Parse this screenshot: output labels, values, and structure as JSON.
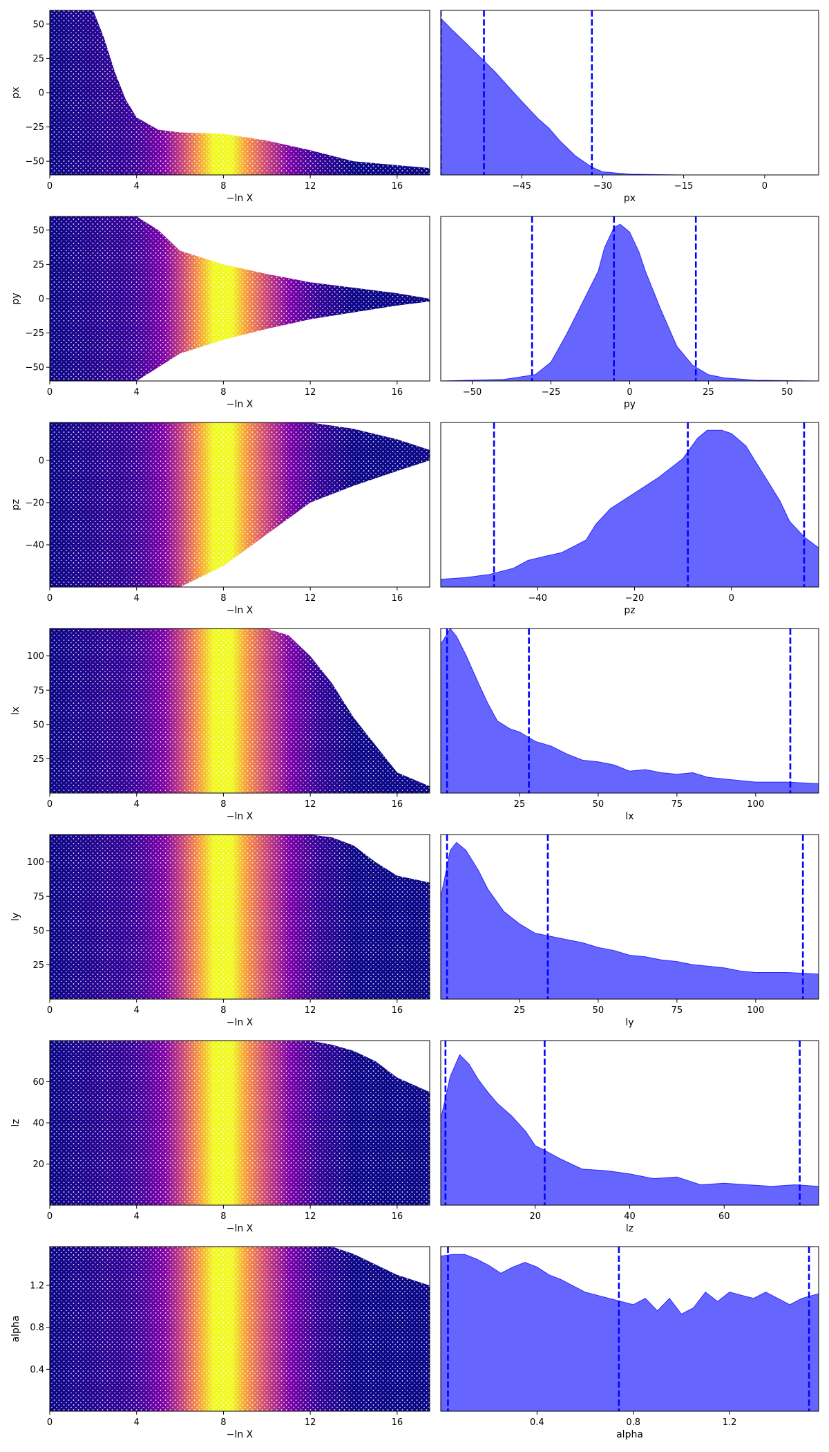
{
  "figure": {
    "xlabel_left": "−ln X"
  },
  "chart_data": [
    {
      "type": "scatter",
      "param": "px",
      "ylabel": "px",
      "xlim": [
        0,
        17.5
      ],
      "ylim": [
        -60,
        60
      ],
      "xticks": [
        {
          "v": 0,
          "t": "0"
        },
        {
          "v": 4,
          "t": "4"
        },
        {
          "v": 8,
          "t": "8"
        },
        {
          "v": 12,
          "t": "12"
        },
        {
          "v": 16,
          "t": "16"
        }
      ],
      "yticks": [
        {
          "v": -50,
          "t": "−50"
        },
        {
          "v": -25,
          "t": "−25"
        },
        {
          "v": 0,
          "t": "0"
        },
        {
          "v": 25,
          "t": "25"
        },
        {
          "v": 50,
          "t": "50"
        }
      ],
      "envelope": {
        "x": [
          0,
          1,
          2,
          2.5,
          3,
          3.5,
          4,
          5,
          6,
          8,
          10,
          12,
          14,
          17.5
        ],
        "upper": [
          60,
          60,
          60,
          40,
          15,
          -5,
          -18,
          -27,
          -29,
          -30,
          -35,
          -42,
          -50,
          -55
        ]
      },
      "color_peak": 7.6
    },
    {
      "type": "kde",
      "param": "px",
      "xlabel": "px",
      "xlim": [
        -60,
        10
      ],
      "ylim": [
        0,
        1.05
      ],
      "xticks": [
        {
          "v": -45,
          "t": "−45"
        },
        {
          "v": -30,
          "t": "−30"
        },
        {
          "v": -15,
          "t": "−15"
        },
        {
          "v": 0,
          "t": "0"
        }
      ],
      "x": [
        -60,
        -58,
        -55,
        -50,
        -45,
        -42,
        -40,
        -38,
        -35,
        -32,
        -30,
        -25,
        -20,
        -15,
        -10,
        10
      ],
      "density": [
        1.0,
        0.93,
        0.83,
        0.66,
        0.47,
        0.36,
        0.3,
        0.22,
        0.12,
        0.05,
        0.02,
        0.005,
        0.002,
        0.0,
        0.0,
        0.0
      ],
      "quantiles": [
        -60,
        -52,
        -32
      ]
    },
    {
      "type": "scatter",
      "param": "py",
      "ylabel": "py",
      "xlim": [
        0,
        17.5
      ],
      "ylim": [
        -60,
        60
      ],
      "xticks": [
        {
          "v": 0,
          "t": "0"
        },
        {
          "v": 4,
          "t": "4"
        },
        {
          "v": 8,
          "t": "8"
        },
        {
          "v": 12,
          "t": "12"
        },
        {
          "v": 16,
          "t": "16"
        }
      ],
      "yticks": [
        {
          "v": -50,
          "t": "−50"
        },
        {
          "v": -25,
          "t": "−25"
        },
        {
          "v": 0,
          "t": "0"
        },
        {
          "v": 25,
          "t": "25"
        },
        {
          "v": 50,
          "t": "50"
        }
      ],
      "envelope": {
        "x": [
          0,
          4,
          5,
          6,
          8,
          10,
          12,
          14,
          16,
          17.5
        ],
        "upper": [
          60,
          60,
          50,
          35,
          25,
          18,
          12,
          8,
          4,
          0
        ],
        "lower": [
          -60,
          -60,
          -50,
          -40,
          -30,
          -22,
          -15,
          -10,
          -5,
          -2
        ]
      },
      "color_peak": 7.6
    },
    {
      "type": "kde",
      "param": "py",
      "xlabel": "py",
      "xlim": [
        -60,
        60
      ],
      "ylim": [
        0,
        1.05
      ],
      "xticks": [
        {
          "v": -50,
          "t": "−50"
        },
        {
          "v": -25,
          "t": "−25"
        },
        {
          "v": 0,
          "t": "0"
        },
        {
          "v": 25,
          "t": "25"
        },
        {
          "v": 50,
          "t": "50"
        }
      ],
      "x": [
        -60,
        -40,
        -30,
        -25,
        -20,
        -15,
        -10,
        -8,
        -5,
        -3,
        0,
        3,
        5,
        10,
        15,
        20,
        25,
        30,
        40,
        60
      ],
      "density": [
        0.0,
        0.01,
        0.04,
        0.12,
        0.3,
        0.5,
        0.7,
        0.85,
        0.98,
        1.0,
        0.95,
        0.82,
        0.7,
        0.45,
        0.22,
        0.1,
        0.04,
        0.02,
        0.005,
        0.0
      ],
      "quantiles": [
        -31,
        -5,
        21
      ]
    },
    {
      "type": "scatter",
      "param": "pz",
      "ylabel": "pz",
      "xlim": [
        0,
        17.5
      ],
      "ylim": [
        -60,
        18
      ],
      "xticks": [
        {
          "v": 0,
          "t": "0"
        },
        {
          "v": 4,
          "t": "4"
        },
        {
          "v": 8,
          "t": "8"
        },
        {
          "v": 12,
          "t": "12"
        },
        {
          "v": 16,
          "t": "16"
        }
      ],
      "yticks": [
        {
          "v": -40,
          "t": "−40"
        },
        {
          "v": -20,
          "t": "−20"
        },
        {
          "v": 0,
          "t": "0"
        }
      ],
      "envelope": {
        "x": [
          0,
          6,
          8,
          10,
          12,
          14,
          16,
          17.5
        ],
        "upper": [
          18,
          18,
          18,
          18,
          18,
          15,
          10,
          5
        ],
        "lower": [
          -60,
          -60,
          -50,
          -35,
          -20,
          -12,
          -5,
          0
        ]
      },
      "color_peak": 7.6
    },
    {
      "type": "kde",
      "param": "pz",
      "xlabel": "pz",
      "xlim": [
        -60,
        18
      ],
      "ylim": [
        0,
        1.05
      ],
      "xticks": [
        {
          "v": -40,
          "t": "−40"
        },
        {
          "v": -20,
          "t": "−20"
        },
        {
          "v": 0,
          "t": "0"
        }
      ],
      "x": [
        -60,
        -55,
        -50,
        -45,
        -42,
        -38,
        -35,
        -30,
        -28,
        -25,
        -20,
        -15,
        -10,
        -7,
        -5,
        -2,
        0,
        3,
        5,
        8,
        10,
        12,
        15,
        18
      ],
      "density": [
        0.05,
        0.06,
        0.08,
        0.12,
        0.17,
        0.2,
        0.22,
        0.3,
        0.4,
        0.5,
        0.6,
        0.7,
        0.82,
        0.95,
        1.0,
        1.0,
        0.98,
        0.9,
        0.8,
        0.65,
        0.55,
        0.42,
        0.32,
        0.25
      ],
      "quantiles": [
        -49,
        -9,
        15
      ]
    },
    {
      "type": "scatter",
      "param": "lx",
      "ylabel": "lx",
      "xlim": [
        0,
        17.5
      ],
      "ylim": [
        0,
        120
      ],
      "xticks": [
        {
          "v": 0,
          "t": "0"
        },
        {
          "v": 4,
          "t": "4"
        },
        {
          "v": 8,
          "t": "8"
        },
        {
          "v": 12,
          "t": "12"
        },
        {
          "v": 16,
          "t": "16"
        }
      ],
      "yticks": [
        {
          "v": 25,
          "t": "25"
        },
        {
          "v": 50,
          "t": "50"
        },
        {
          "v": 75,
          "t": "75"
        },
        {
          "v": 100,
          "t": "100"
        }
      ],
      "envelope": {
        "x": [
          0,
          10,
          11,
          12,
          13,
          14,
          15,
          16,
          17.5
        ],
        "upper": [
          120,
          120,
          115,
          100,
          80,
          55,
          35,
          15,
          5
        ],
        "lower": [
          0,
          0,
          0,
          0,
          0,
          0,
          0,
          0,
          0
        ]
      },
      "color_peak": 7.6
    },
    {
      "type": "kde",
      "param": "lx",
      "xlabel": "lx",
      "xlim": [
        0,
        120
      ],
      "ylim": [
        0,
        1.05
      ],
      "xticks": [
        {
          "v": 25,
          "t": "25"
        },
        {
          "v": 50,
          "t": "50"
        },
        {
          "v": 75,
          "t": "75"
        },
        {
          "v": 100,
          "t": "100"
        }
      ],
      "x": [
        0,
        3,
        5,
        8,
        12,
        15,
        18,
        22,
        25,
        30,
        35,
        40,
        45,
        50,
        55,
        60,
        65,
        70,
        75,
        80,
        85,
        90,
        95,
        100,
        110,
        120
      ],
      "density": [
        0.95,
        1.05,
        1.0,
        0.88,
        0.7,
        0.57,
        0.46,
        0.41,
        0.39,
        0.33,
        0.3,
        0.25,
        0.21,
        0.2,
        0.18,
        0.14,
        0.15,
        0.13,
        0.12,
        0.13,
        0.1,
        0.09,
        0.08,
        0.07,
        0.07,
        0.06
      ],
      "quantiles": [
        2,
        28,
        111
      ]
    },
    {
      "type": "scatter",
      "param": "ly",
      "ylabel": "ly",
      "xlim": [
        0,
        17.5
      ],
      "ylim": [
        0,
        120
      ],
      "xticks": [
        {
          "v": 0,
          "t": "0"
        },
        {
          "v": 4,
          "t": "4"
        },
        {
          "v": 8,
          "t": "8"
        },
        {
          "v": 12,
          "t": "12"
        },
        {
          "v": 16,
          "t": "16"
        }
      ],
      "yticks": [
        {
          "v": 25,
          "t": "25"
        },
        {
          "v": 50,
          "t": "50"
        },
        {
          "v": 75,
          "t": "75"
        },
        {
          "v": 100,
          "t": "100"
        }
      ],
      "envelope": {
        "x": [
          0,
          12,
          13,
          14,
          15,
          16,
          17.5
        ],
        "upper": [
          120,
          120,
          118,
          112,
          100,
          90,
          85
        ],
        "lower": [
          0,
          0,
          0,
          0,
          0,
          0,
          0
        ]
      },
      "color_peak": 7.6
    },
    {
      "type": "kde",
      "param": "ly",
      "xlabel": "ly",
      "xlim": [
        0,
        120
      ],
      "ylim": [
        0,
        1.05
      ],
      "xticks": [
        {
          "v": 25,
          "t": "25"
        },
        {
          "v": 50,
          "t": "50"
        },
        {
          "v": 75,
          "t": "75"
        },
        {
          "v": 100,
          "t": "100"
        }
      ],
      "x": [
        0,
        3,
        5,
        8,
        12,
        15,
        20,
        25,
        30,
        35,
        40,
        45,
        50,
        55,
        60,
        65,
        70,
        75,
        80,
        85,
        90,
        95,
        100,
        110,
        120
      ],
      "density": [
        0.65,
        0.95,
        1.0,
        0.95,
        0.82,
        0.7,
        0.56,
        0.48,
        0.42,
        0.4,
        0.38,
        0.36,
        0.33,
        0.31,
        0.28,
        0.27,
        0.25,
        0.24,
        0.22,
        0.21,
        0.2,
        0.18,
        0.17,
        0.17,
        0.16
      ],
      "quantiles": [
        2,
        34,
        115
      ]
    },
    {
      "type": "scatter",
      "param": "lz",
      "ylabel": "lz",
      "xlim": [
        0,
        17.5
      ],
      "ylim": [
        0,
        80
      ],
      "xticks": [
        {
          "v": 0,
          "t": "0"
        },
        {
          "v": 4,
          "t": "4"
        },
        {
          "v": 8,
          "t": "8"
        },
        {
          "v": 12,
          "t": "12"
        },
        {
          "v": 16,
          "t": "16"
        }
      ],
      "yticks": [
        {
          "v": 20,
          "t": "20"
        },
        {
          "v": 40,
          "t": "40"
        },
        {
          "v": 60,
          "t": "60"
        }
      ],
      "envelope": {
        "x": [
          0,
          12,
          13,
          14,
          15,
          16,
          17.5
        ],
        "upper": [
          80,
          80,
          78,
          75,
          70,
          62,
          55
        ],
        "lower": [
          0,
          0,
          0,
          0,
          0,
          0,
          0
        ]
      },
      "color_peak": 7.6
    },
    {
      "type": "kde",
      "param": "lz",
      "xlabel": "lz",
      "xlim": [
        0,
        80
      ],
      "ylim": [
        0,
        1.05
      ],
      "xticks": [
        {
          "v": 20,
          "t": "20"
        },
        {
          "v": 40,
          "t": "40"
        },
        {
          "v": 60,
          "t": "60"
        }
      ],
      "x": [
        0,
        2,
        4,
        6,
        8,
        10,
        12,
        15,
        18,
        20,
        22,
        25,
        30,
        35,
        40,
        45,
        50,
        55,
        60,
        65,
        70,
        75,
        80
      ],
      "density": [
        0.55,
        0.82,
        0.96,
        0.9,
        0.8,
        0.72,
        0.65,
        0.57,
        0.47,
        0.38,
        0.35,
        0.3,
        0.23,
        0.22,
        0.2,
        0.17,
        0.18,
        0.13,
        0.14,
        0.13,
        0.12,
        0.13,
        0.12
      ],
      "quantiles": [
        1,
        22,
        76
      ]
    },
    {
      "type": "scatter",
      "param": "alpha",
      "ylabel": "alpha",
      "xlim": [
        0,
        17.5
      ],
      "ylim": [
        0,
        1.57
      ],
      "xticks": [
        {
          "v": 0,
          "t": "0"
        },
        {
          "v": 4,
          "t": "4"
        },
        {
          "v": 8,
          "t": "8"
        },
        {
          "v": 12,
          "t": "12"
        },
        {
          "v": 16,
          "t": "16"
        }
      ],
      "yticks": [
        {
          "v": 0.4,
          "t": "0.4"
        },
        {
          "v": 0.8,
          "t": "0.8"
        },
        {
          "v": 1.2,
          "t": "1.2"
        }
      ],
      "envelope": {
        "x": [
          0,
          13,
          14,
          15,
          16,
          17.5
        ],
        "upper": [
          1.57,
          1.57,
          1.5,
          1.4,
          1.3,
          1.2
        ],
        "lower": [
          0,
          0,
          0,
          0,
          0,
          0
        ]
      },
      "color_peak": 7.6
    },
    {
      "type": "kde",
      "param": "alpha",
      "xlabel": "alpha",
      "xlim": [
        0,
        1.57
      ],
      "ylim": [
        0,
        1.05
      ],
      "xticks": [
        {
          "v": 0.4,
          "t": "0.4"
        },
        {
          "v": 0.8,
          "t": "0.8"
        },
        {
          "v": 1.2,
          "t": "1.2"
        }
      ],
      "x": [
        0,
        0.05,
        0.1,
        0.15,
        0.2,
        0.25,
        0.3,
        0.35,
        0.4,
        0.45,
        0.5,
        0.55,
        0.6,
        0.65,
        0.7,
        0.75,
        0.8,
        0.85,
        0.9,
        0.95,
        1.0,
        1.05,
        1.1,
        1.15,
        1.2,
        1.25,
        1.3,
        1.35,
        1.4,
        1.45,
        1.5,
        1.57
      ],
      "density": [
        0.99,
        1.0,
        1.0,
        0.97,
        0.93,
        0.88,
        0.92,
        0.95,
        0.92,
        0.87,
        0.84,
        0.8,
        0.76,
        0.74,
        0.72,
        0.7,
        0.68,
        0.72,
        0.64,
        0.72,
        0.62,
        0.66,
        0.76,
        0.7,
        0.76,
        0.74,
        0.72,
        0.76,
        0.72,
        0.68,
        0.72,
        0.75
      ],
      "quantiles": [
        0.03,
        0.74,
        1.53
      ]
    }
  ]
}
